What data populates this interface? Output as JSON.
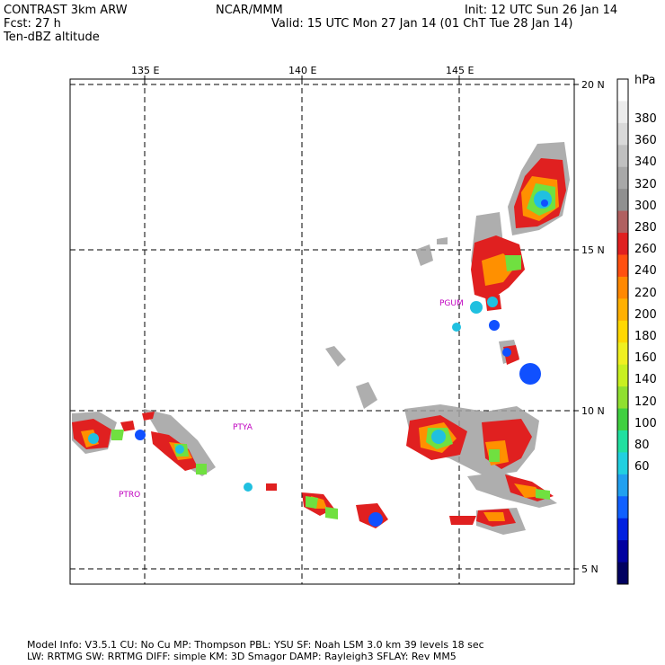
{
  "header": {
    "model": "CONTRAST  3km ARW",
    "forecast": "Fcst:   27 h",
    "field": "Ten-dBZ altitude",
    "center": "NCAR/MMM",
    "init": "Init: 12 UTC Sun 26 Jan 14",
    "valid": "Valid: 15 UTC Mon 27 Jan 14 (01 ChT Tue 28 Jan 14)"
  },
  "map": {
    "lon_labels": [
      "135 E",
      "140 E",
      "145 E"
    ],
    "lat_labels": [
      "20 N",
      "15 N",
      "10 N",
      "5 N"
    ],
    "stations": [
      "PGUM",
      "PTYA",
      "PTRO"
    ]
  },
  "colorbar": {
    "unit": "hPa",
    "labels": [
      "380",
      "360",
      "340",
      "320",
      "300",
      "280",
      "260",
      "240",
      "220",
      "200",
      "180",
      "160",
      "140",
      "120",
      "100",
      "80",
      "60"
    ],
    "colors": [
      "#ffffff",
      "#ececec",
      "#d9d9d9",
      "#c0c0c0",
      "#a8a8a8",
      "#909090",
      "#b06060",
      "#e02020",
      "#ff5010",
      "#ff8800",
      "#ffb000",
      "#ffd800",
      "#f0f020",
      "#c8f020",
      "#90e030",
      "#40d040",
      "#20e0a0",
      "#20d0e0",
      "#20a0f0",
      "#1060ff",
      "#0020e0",
      "#0000a0",
      "#000060"
    ]
  },
  "footer": {
    "line1": "Model Info: V3.5.1   CU: No Cu    MP: Thompson    PBL: YSU      SF: Noah LSM     3.0 km   39 levels   18 sec",
    "line2": "                  LW: RRTMG    SW: RRTMG   DIFF: simple KM: 3D Smagor DAMP: Rayleigh3  SFLAY: Rev MM5"
  }
}
